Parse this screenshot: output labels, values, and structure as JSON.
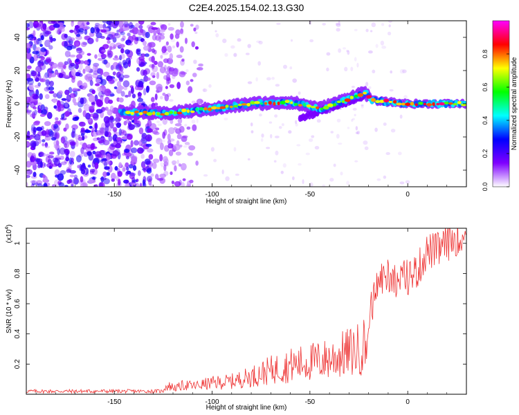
{
  "title": "C2E4.2025.154.02.13.G30",
  "chart_data": [
    {
      "type": "heatmap",
      "xlabel": "Height of straight line (km)",
      "ylabel": "Frequency (Hz)",
      "xlim": [
        -195,
        30
      ],
      "ylim": [
        -50,
        50
      ],
      "x_ticks": [
        -150,
        -100,
        -50,
        0
      ],
      "y_ticks": [
        40,
        20,
        0,
        -20,
        -40
      ],
      "colorbar": {
        "label": "Normalized spectral amplitude",
        "range": [
          0,
          1
        ],
        "ticks": [
          "0.0",
          "0.2",
          "0.4",
          "0.6",
          "0.8"
        ],
        "colormap": [
          "#ffffff",
          "#7f00ff",
          "#0000ff",
          "#00ffff",
          "#00ff00",
          "#ffff00",
          "#ff0000",
          "#ff00ff"
        ]
      },
      "features": {
        "noise_region_km": [
          -195,
          -105
        ],
        "signal_start_km": -147,
        "signal_track": [
          {
            "x": -147,
            "f": -5
          },
          {
            "x": -125,
            "f": -6
          },
          {
            "x": -100,
            "f": -3
          },
          {
            "x": -80,
            "f": 0
          },
          {
            "x": -60,
            "f": 1
          },
          {
            "x": -45,
            "f": -3
          },
          {
            "x": -35,
            "f": 1
          },
          {
            "x": -22,
            "f": 7
          },
          {
            "x": -18,
            "f": 2
          },
          {
            "x": 0,
            "f": 0
          },
          {
            "x": 30,
            "f": 0
          }
        ]
      }
    },
    {
      "type": "line",
      "xlabel": "Height of straight line (km)",
      "ylabel": "SNR (10 * v/v)",
      "y_scale_label": "(x10",
      "y_scale_exp": "4",
      "y_scale_suffix": ")",
      "xlim": [
        -195,
        30
      ],
      "ylim": [
        0,
        1.1
      ],
      "x_ticks": [
        -150,
        -100,
        -50,
        0
      ],
      "y_ticks": [
        0.2,
        0.4,
        0.6,
        0.8,
        1
      ],
      "color": "#ee3333",
      "series": [
        {
          "x": [
            -195,
            -180,
            -160,
            -140,
            -130,
            -122,
            -118,
            -114,
            -110,
            -100,
            -90,
            -80,
            -70,
            -60,
            -50,
            -40,
            -30,
            -25,
            -21,
            -19,
            -15,
            -10,
            -5,
            0,
            5,
            10,
            15,
            20,
            25,
            30
          ],
          "values": [
            0.02,
            0.02,
            0.02,
            0.02,
            0.03,
            0.05,
            0.04,
            0.06,
            0.05,
            0.07,
            0.08,
            0.11,
            0.15,
            0.18,
            0.2,
            0.22,
            0.26,
            0.28,
            0.32,
            0.55,
            0.75,
            0.8,
            0.75,
            0.78,
            0.82,
            0.95,
            0.95,
            1.0,
            1.04,
            1.05
          ]
        }
      ]
    }
  ]
}
